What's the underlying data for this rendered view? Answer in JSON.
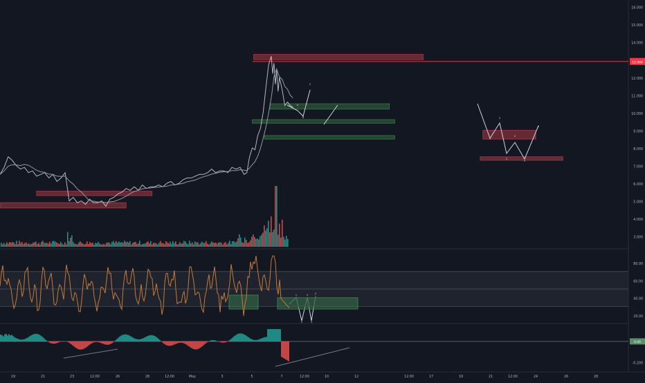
{
  "chart_data": {
    "type": "line",
    "price_panel": {
      "y_ticks": [
        "16.000",
        "15.000",
        "14.000",
        "13.000",
        "12.000",
        "11.000",
        "10.000",
        "9.000",
        "8.000",
        "7.000",
        "6.000",
        "5.000",
        "4.000",
        "3.000"
      ],
      "y_tick_values": [
        16,
        15,
        14,
        13,
        12,
        11,
        10,
        9,
        8,
        7,
        6,
        5,
        4,
        3
      ],
      "ylim": [
        2.4,
        16.3
      ],
      "current_price_label": "12.904",
      "current_price": 12.9,
      "price_series_x_days": [
        0,
        0.3,
        0.6,
        0.9,
        1.2,
        1.5,
        1.8,
        2.1,
        2.4,
        2.7,
        3,
        3.3,
        3.6,
        3.9,
        4.2,
        4.5,
        4.8,
        5.1,
        5.4,
        5.7,
        6,
        6.3,
        6.6,
        6.9,
        7.2,
        7.5,
        7.8,
        8.1,
        8.4,
        8.7,
        9,
        9.3,
        9.6,
        9.9,
        10.2,
        10.5,
        10.8,
        11.1,
        11.4,
        11.7,
        12,
        12.3,
        12.6,
        12.9,
        13.2,
        13.5,
        13.8,
        14.1,
        14.4,
        14.7,
        15,
        15.3,
        15.6,
        15.9,
        16.2,
        16.5,
        16.8,
        17.1,
        17.4,
        17.7,
        18,
        18.2,
        18.4,
        18.6,
        18.8,
        19,
        19.2,
        19.4,
        19.6,
        19.8,
        20,
        20.1,
        20.2,
        20.3,
        20.4,
        20.5,
        20.6,
        20.8,
        21.0,
        21.2,
        21.4,
        21.6
      ],
      "price_series": [
        6.5,
        6.9,
        7.5,
        7.3,
        7.0,
        6.8,
        6.9,
        6.6,
        6.7,
        6.4,
        6.5,
        6.6,
        6.3,
        6.5,
        6.1,
        6.3,
        6.6,
        5.0,
        5.2,
        4.9,
        5.0,
        4.8,
        5.1,
        4.9,
        4.9,
        5.0,
        4.7,
        5.1,
        5.2,
        5.4,
        5.5,
        5.7,
        5.6,
        5.8,
        5.6,
        5.9,
        5.7,
        5.8,
        5.8,
        5.9,
        5.8,
        6.0,
        6.1,
        5.9,
        6.0,
        6.2,
        6.3,
        6.3,
        6.4,
        6.5,
        6.5,
        6.6,
        6.8,
        6.6,
        6.7,
        6.7,
        6.6,
        6.9,
        6.8,
        6.9,
        6.5,
        6.6,
        7.5,
        8.0,
        7.9,
        8.7,
        9.1,
        10.0,
        11.4,
        12.7,
        13.2,
        12.2,
        12.8,
        11.6,
        12.4,
        11.2,
        12.0,
        11.3,
        10.4,
        10.6,
        10.4,
        10.3
      ],
      "zones_supply": [
        {
          "x0": 18.7,
          "x1": 31.2,
          "y0": 13.0,
          "y1": 13.3
        },
        {
          "x0": 35.6,
          "x1": 39.5,
          "y0": 8.5,
          "y1": 9.0
        },
        {
          "x0": 35.4,
          "x1": 41.5,
          "y0": 7.3,
          "y1": 7.5
        },
        {
          "x0": 2.7,
          "x1": 11.2,
          "y0": 5.3,
          "y1": 5.55
        },
        {
          "x0": 0.0,
          "x1": 9.3,
          "y0": 4.6,
          "y1": 4.9
        }
      ],
      "zones_demand": [
        {
          "x0": 19.9,
          "x1": 28.7,
          "y0": 10.2,
          "y1": 10.5
        },
        {
          "x0": 18.6,
          "x1": 29.1,
          "y0": 9.4,
          "y1": 9.6
        },
        {
          "x0": 19.5,
          "x1": 29.1,
          "y0": 8.5,
          "y1": 8.7
        }
      ],
      "wave_labels": [
        "A",
        "B",
        "C",
        "1",
        "2",
        "3",
        "4",
        "5"
      ]
    },
    "oscillator_panel": {
      "y_ticks": [
        "80.00",
        "60.00",
        "40.00",
        "20.00"
      ],
      "y_tick_values": [
        80,
        60,
        40,
        20
      ],
      "ylim": [
        12,
        92
      ],
      "band": [
        30,
        70
      ],
      "mid_line": 50,
      "wave_labels": [
        "1",
        "2",
        "3",
        "4",
        "5"
      ]
    },
    "momentum_panel": {
      "y_ticks": [
        "0.00",
        "-0.200"
      ],
      "y_tick_values": [
        0,
        -0.2
      ],
      "ylim": [
        -0.27,
        0.16
      ],
      "zero_label": "0.00"
    },
    "x_axis": {
      "tick_labels": [
        "19",
        "21",
        "23",
        "12:00",
        "26",
        "28",
        "12:00",
        "May",
        "3",
        "5",
        "7",
        "12:00",
        "10",
        "12",
        "12:00",
        "17",
        "19",
        "21",
        "12:00",
        "24",
        "26",
        "28"
      ]
    },
    "colors": {
      "background": "#131722",
      "price": "#d1d4dc",
      "price_marker": "#f23645",
      "supply_zone": "#a63a45",
      "demand_zone": "#3a7a4a",
      "oscillator": "#c67b3a",
      "volume_up": "#26a69a",
      "volume_down": "#ef5350"
    }
  }
}
